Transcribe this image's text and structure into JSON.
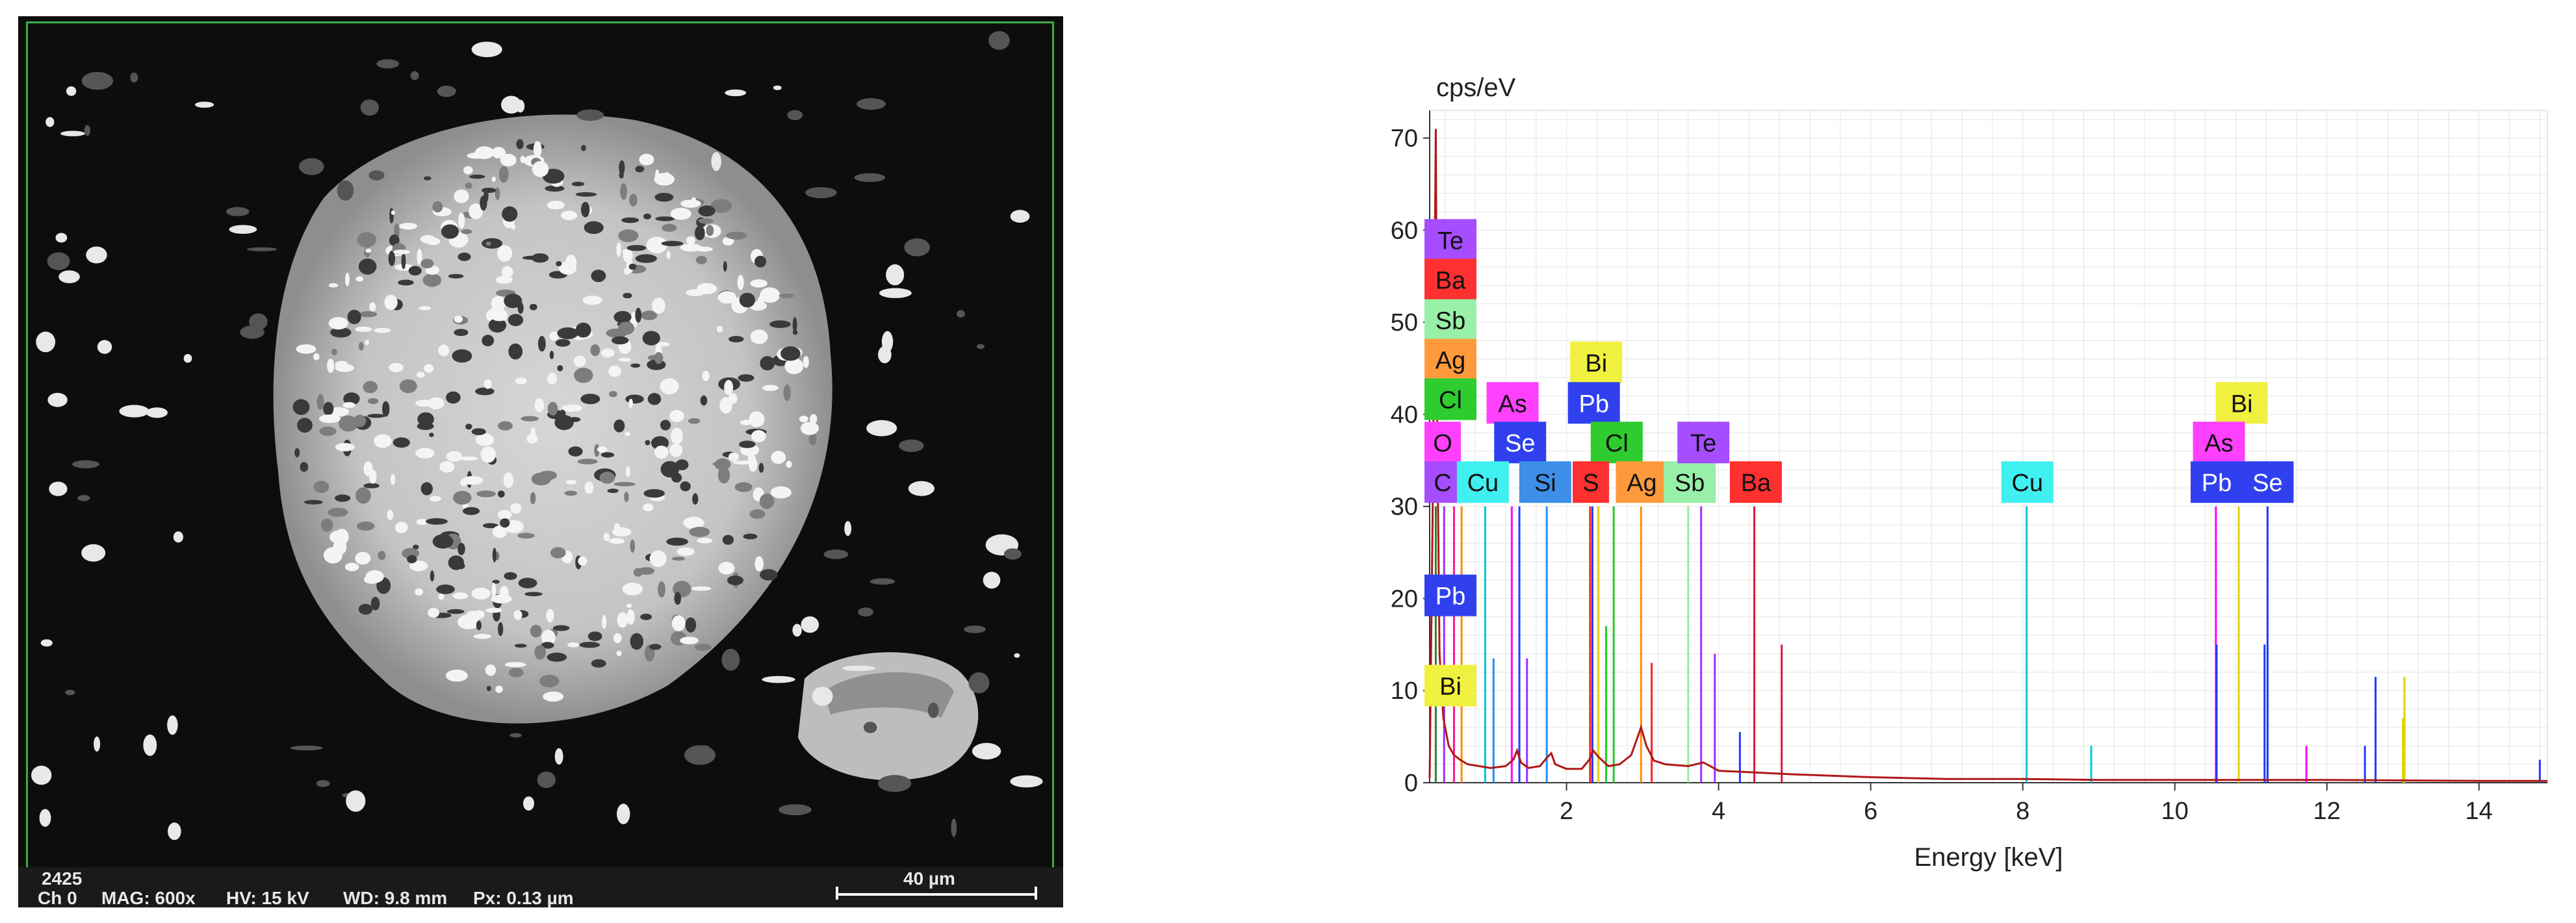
{
  "sem_image": {
    "footer": {
      "image_id": "2425",
      "channel": "Ch 0",
      "magnification": "MAG: 600x",
      "voltage": "HV: 15 kV",
      "working_distance": "WD: 9.8 mm",
      "pixel_size": "Px: 0.13 µm",
      "scale_label": "40 µm"
    },
    "frame_color": "#3cb043"
  },
  "chart_data": {
    "type": "line",
    "ylabel": "cps/eV",
    "xlabel": "Energy [keV]",
    "xlim": [
      0.2,
      14.9
    ],
    "ylim": [
      0,
      73
    ],
    "xticks": [
      2,
      4,
      6,
      8,
      10,
      12,
      14
    ],
    "yticks": [
      0,
      10,
      20,
      30,
      40,
      50,
      60,
      70
    ],
    "grid": true,
    "spectrum_color": "#b01818",
    "spectrum": [
      [
        0.2,
        0.5
      ],
      [
        0.24,
        30
      ],
      [
        0.26,
        48
      ],
      [
        0.28,
        71
      ],
      [
        0.3,
        38
      ],
      [
        0.33,
        14
      ],
      [
        0.38,
        7
      ],
      [
        0.45,
        4
      ],
      [
        0.52,
        3
      ],
      [
        0.6,
        2.5
      ],
      [
        0.7,
        2
      ],
      [
        0.85,
        1.8
      ],
      [
        1.0,
        1.6
      ],
      [
        1.2,
        1.8
      ],
      [
        1.3,
        2.5
      ],
      [
        1.35,
        3.5
      ],
      [
        1.4,
        2.2
      ],
      [
        1.5,
        1.6
      ],
      [
        1.65,
        1.8
      ],
      [
        1.75,
        2.8
      ],
      [
        1.8,
        3.2
      ],
      [
        1.85,
        2
      ],
      [
        2.0,
        1.5
      ],
      [
        2.2,
        1.5
      ],
      [
        2.3,
        2.5
      ],
      [
        2.35,
        3.5
      ],
      [
        2.42,
        2.8
      ],
      [
        2.55,
        1.8
      ],
      [
        2.7,
        2
      ],
      [
        2.85,
        3
      ],
      [
        2.98,
        6
      ],
      [
        3.05,
        4
      ],
      [
        3.15,
        2.4
      ],
      [
        3.3,
        2
      ],
      [
        3.6,
        1.8
      ],
      [
        3.8,
        2.2
      ],
      [
        4.0,
        1.3
      ],
      [
        4.5,
        1.1
      ],
      [
        5.0,
        0.9
      ],
      [
        6.0,
        0.6
      ],
      [
        7.0,
        0.4
      ],
      [
        8.0,
        0.4
      ],
      [
        9.0,
        0.3
      ],
      [
        10.0,
        0.3
      ],
      [
        11.0,
        0.3
      ],
      [
        12.0,
        0.3
      ],
      [
        13.0,
        0.25
      ],
      [
        14.0,
        0.2
      ],
      [
        14.9,
        0.2
      ]
    ],
    "element_lines": [
      {
        "x": 0.28,
        "y": 30,
        "color": "#2e7d32"
      },
      {
        "x": 0.39,
        "y": 30,
        "color": "#9b30ff"
      },
      {
        "x": 0.52,
        "y": 30,
        "color": "#ff1493"
      },
      {
        "x": 0.62,
        "y": 30,
        "color": "#ff8c00"
      },
      {
        "x": 0.93,
        "y": 30,
        "color": "#00c8d8"
      },
      {
        "x": 0.93,
        "y": 7,
        "color": "#00c8d8"
      },
      {
        "x": 1.28,
        "y": 30,
        "color": "#ff00ff"
      },
      {
        "x": 1.38,
        "y": 30,
        "color": "#1e3cff"
      },
      {
        "x": 1.74,
        "y": 30,
        "color": "#1e90ff"
      },
      {
        "x": 2.31,
        "y": 30,
        "color": "#ff2020"
      },
      {
        "x": 2.34,
        "y": 30,
        "color": "#1e3cff"
      },
      {
        "x": 2.42,
        "y": 30,
        "color": "#e0d000"
      },
      {
        "x": 2.62,
        "y": 30,
        "color": "#22cc22"
      },
      {
        "x": 2.98,
        "y": 30,
        "color": "#ff8c00"
      },
      {
        "x": 3.6,
        "y": 30,
        "color": "#90ee90"
      },
      {
        "x": 3.77,
        "y": 30,
        "color": "#9b30ff"
      },
      {
        "x": 4.47,
        "y": 30,
        "color": "#dc143c"
      },
      {
        "x": 8.05,
        "y": 30,
        "color": "#00c8d8"
      },
      {
        "x": 8.05,
        "y": 15,
        "color": "#00c8d8"
      },
      {
        "x": 8.9,
        "y": 4,
        "color": "#00c8d8"
      },
      {
        "x": 10.54,
        "y": 30,
        "color": "#ff00ff"
      },
      {
        "x": 10.55,
        "y": 15,
        "color": "#1e3cff"
      },
      {
        "x": 10.84,
        "y": 30,
        "color": "#e0d000"
      },
      {
        "x": 11.22,
        "y": 30,
        "color": "#1e3cff"
      },
      {
        "x": 11.18,
        "y": 15,
        "color": "#1e3cff"
      },
      {
        "x": 11.73,
        "y": 4,
        "color": "#ff00ff"
      },
      {
        "x": 12.64,
        "y": 11.5,
        "color": "#1e3cff"
      },
      {
        "x": 13.02,
        "y": 11.5,
        "color": "#e0d000"
      },
      {
        "x": 12.5,
        "y": 4,
        "color": "#1e3cff"
      },
      {
        "x": 13.0,
        "y": 7,
        "color": "#e0d000"
      },
      {
        "x": 14.8,
        "y": 2.5,
        "color": "#1e3cff"
      },
      {
        "x": 1.48,
        "y": 13.5,
        "color": "#9b30ff"
      },
      {
        "x": 1.04,
        "y": 13.5,
        "color": "#1e90ff"
      },
      {
        "x": 2.52,
        "y": 17,
        "color": "#22cc22"
      },
      {
        "x": 3.12,
        "y": 13,
        "color": "#ff2020"
      },
      {
        "x": 3.95,
        "y": 14,
        "color": "#9b30ff"
      },
      {
        "x": 4.83,
        "y": 15,
        "color": "#dc143c"
      },
      {
        "x": 4.28,
        "y": 5.5,
        "color": "#1e3cff"
      }
    ],
    "labels": [
      {
        "text": "Te",
        "x": 0.22,
        "y": 58.8,
        "color": "#a64dff"
      },
      {
        "text": "Ba",
        "x": 0.32,
        "y": 54.5,
        "color": "#ff3030"
      },
      {
        "text": "Sb",
        "x": 0.22,
        "y": 50.1,
        "color": "#98f0a8"
      },
      {
        "text": "Ag",
        "x": 0.18,
        "y": 45.8,
        "color": "#ff9a3c"
      },
      {
        "text": "Cl",
        "x": 0.1,
        "y": 41.5,
        "color": "#2ecc2e"
      },
      {
        "text": "O",
        "x": 0.37,
        "y": 36.8,
        "color": "#ff40ff"
      },
      {
        "text": "C",
        "x": 0.16,
        "y": 32.5,
        "color": "#a64dff"
      },
      {
        "text": "Pb",
        "x": 0.15,
        "y": 20.2,
        "color": "#3040ee"
      },
      {
        "text": "Bi",
        "x": 0.15,
        "y": 10.4,
        "color": "#f0f040"
      },
      {
        "text": "As",
        "x": 1.29,
        "y": 41.1,
        "color": "#ff40ff"
      },
      {
        "text": "Se",
        "x": 1.39,
        "y": 36.8,
        "color": "#3040ee"
      },
      {
        "text": "Cu",
        "x": 0.9,
        "y": 32.5,
        "color": "#40f0f0"
      },
      {
        "text": "Si",
        "x": 1.72,
        "y": 32.5,
        "color": "#3d8fe8"
      },
      {
        "text": "Bi",
        "x": 2.39,
        "y": 45.5,
        "color": "#f0f040"
      },
      {
        "text": "Pb",
        "x": 2.36,
        "y": 41.1,
        "color": "#3040ee"
      },
      {
        "text": "Cl",
        "x": 2.66,
        "y": 36.8,
        "color": "#2ecc2e"
      },
      {
        "text": "S",
        "x": 2.32,
        "y": 32.5,
        "color": "#ff3030"
      },
      {
        "text": "Ag",
        "x": 2.99,
        "y": 32.5,
        "color": "#ff9a3c"
      },
      {
        "text": "Sb",
        "x": 3.62,
        "y": 32.5,
        "color": "#98f0a8"
      },
      {
        "text": "Te",
        "x": 3.8,
        "y": 36.8,
        "color": "#a64dff"
      },
      {
        "text": "Ba",
        "x": 4.49,
        "y": 32.5,
        "color": "#ff3030"
      },
      {
        "text": "Cu",
        "x": 8.06,
        "y": 32.5,
        "color": "#40f0f0"
      },
      {
        "text": "Bi",
        "x": 10.88,
        "y": 41.1,
        "color": "#f0f040"
      },
      {
        "text": "As",
        "x": 10.58,
        "y": 36.8,
        "color": "#ff40ff"
      },
      {
        "text": "Pb",
        "x": 10.55,
        "y": 32.5,
        "color": "#3040ee"
      },
      {
        "text": "Se",
        "x": 11.22,
        "y": 32.5,
        "color": "#3040ee"
      }
    ]
  }
}
